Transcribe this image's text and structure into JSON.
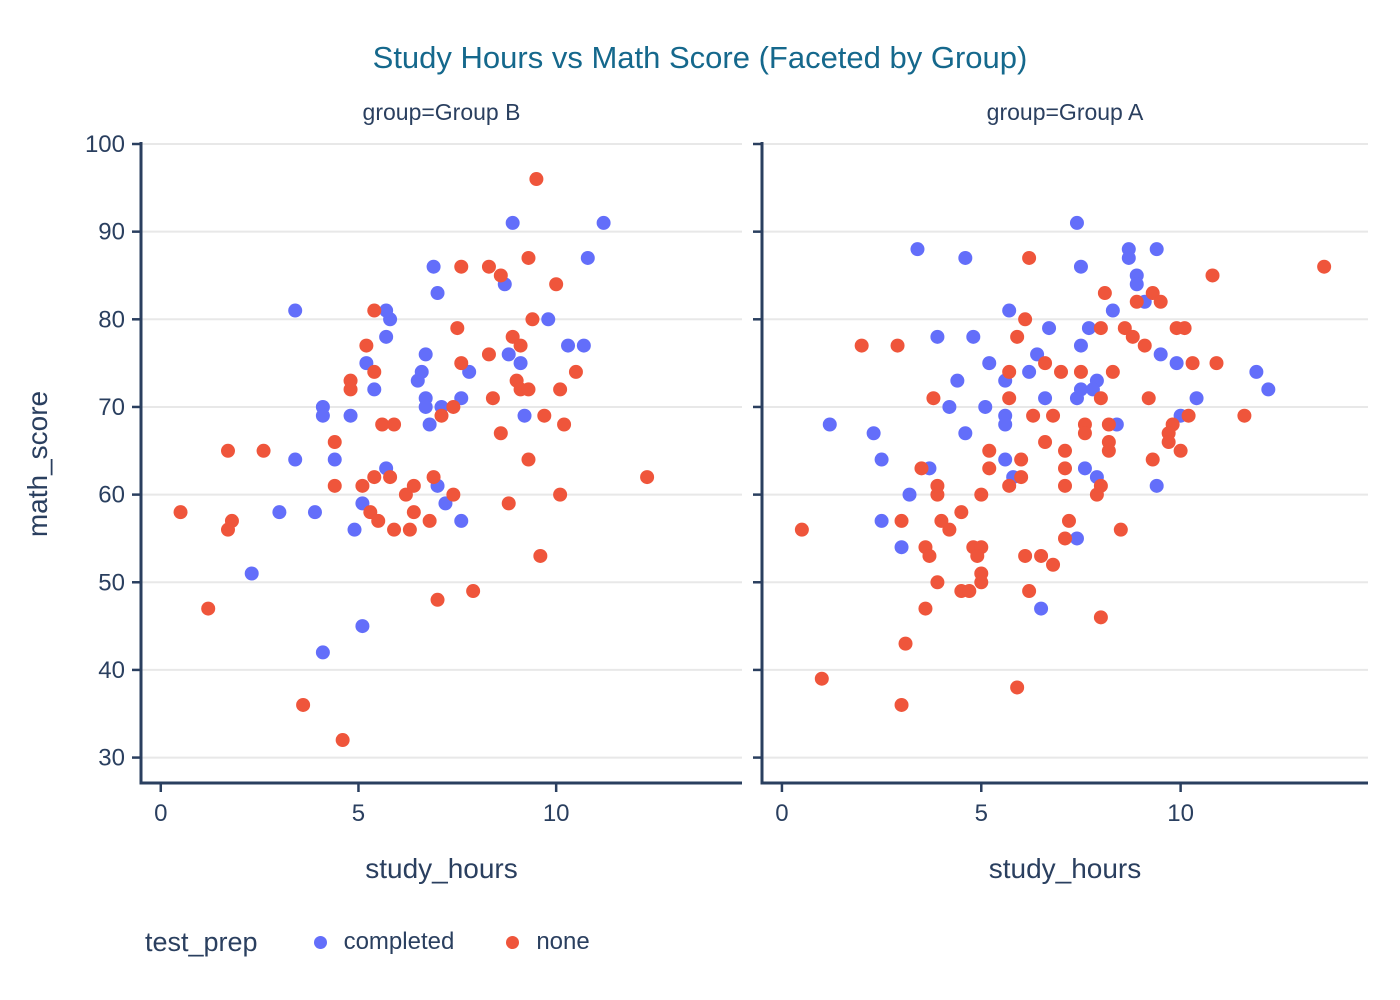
{
  "colors": {
    "title": "#15688C",
    "text": "#2A3F5F",
    "grid": "#E8E8E8",
    "axis": "#2A3F5F",
    "background": "#FFFFFF",
    "completed": "#636EFA",
    "none": "#EF553B"
  },
  "legend": {
    "title": "test_prep",
    "items": [
      {
        "label": "completed",
        "color_key": "completed"
      },
      {
        "label": "none",
        "color_key": "none"
      }
    ]
  },
  "chart_data": {
    "type": "scatter",
    "title": "Study Hours vs Math Score (Faceted by Group)",
    "xlabel": "study_hours",
    "ylabel": "math_score",
    "legend_title": "test_prep",
    "x_ticks": [
      0,
      5,
      10
    ],
    "y_ticks": [
      30,
      40,
      50,
      60,
      70,
      80,
      90,
      100
    ],
    "x_range": [
      -0.5,
      14.7
    ],
    "y_range": [
      27.1,
      100
    ],
    "grid": "horizontal-only",
    "legend_position": "bottom-left",
    "facets": [
      {
        "label": "group=Group B",
        "series": [
          {
            "name": "completed",
            "points": [
              [
                3.4,
                81
              ],
              [
                5.7,
                81
              ],
              [
                5.8,
                80
              ],
              [
                6.9,
                86
              ],
              [
                7.0,
                83
              ],
              [
                5.7,
                78
              ],
              [
                5.2,
                75
              ],
              [
                5.4,
                72
              ],
              [
                6.5,
                73
              ],
              [
                6.6,
                74
              ],
              [
                6.7,
                76
              ],
              [
                6.7,
                71
              ],
              [
                6.7,
                70
              ],
              [
                7.1,
                70
              ],
              [
                4.1,
                70
              ],
              [
                4.1,
                69
              ],
              [
                4.8,
                69
              ],
              [
                6.8,
                68
              ],
              [
                3.4,
                64
              ],
              [
                4.4,
                64
              ],
              [
                5.7,
                63
              ],
              [
                8.9,
                91
              ],
              [
                11.2,
                91
              ],
              [
                10.8,
                87
              ],
              [
                8.7,
                84
              ],
              [
                9.8,
                80
              ],
              [
                8.8,
                76
              ],
              [
                10.3,
                77
              ],
              [
                10.7,
                77
              ],
              [
                9.1,
                75
              ],
              [
                7.8,
                74
              ],
              [
                7.6,
                71
              ],
              [
                9.2,
                69
              ],
              [
                3.0,
                58
              ],
              [
                3.9,
                58
              ],
              [
                5.1,
                59
              ],
              [
                4.9,
                56
              ],
              [
                2.3,
                51
              ],
              [
                5.1,
                45
              ],
              [
                4.1,
                42
              ],
              [
                7.0,
                61
              ],
              [
                7.2,
                59
              ],
              [
                7.6,
                57
              ]
            ]
          },
          {
            "name": "none",
            "points": [
              [
                5.4,
                81
              ],
              [
                5.2,
                77
              ],
              [
                5.4,
                74
              ],
              [
                4.8,
                73
              ],
              [
                4.8,
                72
              ],
              [
                5.6,
                68
              ],
              [
                5.9,
                68
              ],
              [
                7.1,
                69
              ],
              [
                4.4,
                66
              ],
              [
                1.7,
                65
              ],
              [
                2.6,
                65
              ],
              [
                9.5,
                96
              ],
              [
                9.3,
                87
              ],
              [
                7.6,
                86
              ],
              [
                8.3,
                86
              ],
              [
                8.6,
                85
              ],
              [
                10.0,
                84
              ],
              [
                9.4,
                80
              ],
              [
                7.5,
                79
              ],
              [
                8.9,
                78
              ],
              [
                9.1,
                77
              ],
              [
                8.3,
                76
              ],
              [
                7.6,
                75
              ],
              [
                10.5,
                74
              ],
              [
                9.0,
                73
              ],
              [
                9.1,
                72
              ],
              [
                9.3,
                72
              ],
              [
                8.4,
                71
              ],
              [
                10.1,
                72
              ],
              [
                7.4,
                70
              ],
              [
                9.7,
                69
              ],
              [
                10.2,
                68
              ],
              [
                8.6,
                67
              ],
              [
                9.3,
                64
              ],
              [
                4.4,
                61
              ],
              [
                5.1,
                61
              ],
              [
                5.4,
                62
              ],
              [
                5.8,
                62
              ],
              [
                6.4,
                61
              ],
              [
                6.9,
                62
              ],
              [
                6.2,
                60
              ],
              [
                0.5,
                58
              ],
              [
                1.8,
                57
              ],
              [
                1.7,
                56
              ],
              [
                5.3,
                58
              ],
              [
                5.5,
                57
              ],
              [
                5.9,
                56
              ],
              [
                6.3,
                56
              ],
              [
                6.4,
                58
              ],
              [
                6.8,
                57
              ],
              [
                1.2,
                47
              ],
              [
                7.0,
                48
              ],
              [
                3.6,
                36
              ],
              [
                4.6,
                32
              ],
              [
                12.3,
                62
              ],
              [
                7.4,
                60
              ],
              [
                8.8,
                59
              ],
              [
                10.1,
                60
              ],
              [
                9.6,
                53
              ],
              [
                7.9,
                49
              ]
            ]
          }
        ]
      },
      {
        "label": "group=Group A",
        "series": [
          {
            "name": "completed",
            "points": [
              [
                3.4,
                88
              ],
              [
                4.6,
                87
              ],
              [
                5.7,
                81
              ],
              [
                6.7,
                79
              ],
              [
                3.9,
                78
              ],
              [
                4.8,
                78
              ],
              [
                5.2,
                75
              ],
              [
                6.4,
                76
              ],
              [
                5.6,
                73
              ],
              [
                6.2,
                74
              ],
              [
                4.4,
                73
              ],
              [
                4.2,
                70
              ],
              [
                5.1,
                70
              ],
              [
                6.6,
                71
              ],
              [
                5.6,
                69
              ],
              [
                5.6,
                68
              ],
              [
                1.2,
                68
              ],
              [
                2.3,
                67
              ],
              [
                4.6,
                67
              ],
              [
                2.5,
                64
              ],
              [
                5.6,
                64
              ],
              [
                7.4,
                91
              ],
              [
                7.5,
                86
              ],
              [
                8.7,
                88
              ],
              [
                8.7,
                87
              ],
              [
                9.4,
                88
              ],
              [
                8.9,
                85
              ],
              [
                8.9,
                84
              ],
              [
                9.1,
                82
              ],
              [
                8.3,
                81
              ],
              [
                7.7,
                79
              ],
              [
                7.5,
                77
              ],
              [
                9.5,
                76
              ],
              [
                9.9,
                75
              ],
              [
                11.9,
                74
              ],
              [
                12.2,
                72
              ],
              [
                7.9,
                73
              ],
              [
                7.5,
                72
              ],
              [
                7.8,
                72
              ],
              [
                7.4,
                71
              ],
              [
                10.4,
                71
              ],
              [
                10.0,
                69
              ],
              [
                8.4,
                68
              ],
              [
                3.7,
                63
              ],
              [
                5.8,
                62
              ],
              [
                3.2,
                60
              ],
              [
                2.5,
                57
              ],
              [
                3.0,
                54
              ],
              [
                6.5,
                47
              ],
              [
                7.4,
                55
              ],
              [
                7.6,
                63
              ],
              [
                7.9,
                62
              ],
              [
                9.4,
                61
              ]
            ]
          },
          {
            "name": "none",
            "points": [
              [
                6.2,
                87
              ],
              [
                6.1,
                80
              ],
              [
                2.0,
                77
              ],
              [
                2.9,
                77
              ],
              [
                5.9,
                78
              ],
              [
                6.6,
                75
              ],
              [
                5.7,
                74
              ],
              [
                7.0,
                74
              ],
              [
                3.8,
                71
              ],
              [
                5.7,
                71
              ],
              [
                6.3,
                69
              ],
              [
                6.8,
                69
              ],
              [
                6.6,
                66
              ],
              [
                5.2,
                65
              ],
              [
                3.5,
                63
              ],
              [
                5.2,
                63
              ],
              [
                6.0,
                64
              ],
              [
                10.8,
                85
              ],
              [
                13.6,
                86
              ],
              [
                8.1,
                83
              ],
              [
                9.3,
                83
              ],
              [
                8.9,
                82
              ],
              [
                9.5,
                82
              ],
              [
                8.0,
                79
              ],
              [
                8.6,
                79
              ],
              [
                8.8,
                78
              ],
              [
                9.9,
                79
              ],
              [
                10.1,
                79
              ],
              [
                9.1,
                77
              ],
              [
                10.3,
                75
              ],
              [
                10.9,
                75
              ],
              [
                7.5,
                74
              ],
              [
                8.3,
                74
              ],
              [
                8.0,
                71
              ],
              [
                9.2,
                71
              ],
              [
                10.2,
                69
              ],
              [
                11.6,
                69
              ],
              [
                7.6,
                68
              ],
              [
                7.6,
                67
              ],
              [
                8.2,
                68
              ],
              [
                9.8,
                68
              ],
              [
                9.7,
                67
              ],
              [
                9.7,
                66
              ],
              [
                8.2,
                66
              ],
              [
                8.2,
                65
              ],
              [
                10.0,
                65
              ],
              [
                9.3,
                64
              ],
              [
                6.0,
                62
              ],
              [
                5.7,
                61
              ],
              [
                3.9,
                61
              ],
              [
                3.9,
                60
              ],
              [
                5.0,
                60
              ],
              [
                4.5,
                58
              ],
              [
                3.0,
                57
              ],
              [
                4.0,
                57
              ],
              [
                4.2,
                56
              ],
              [
                0.5,
                56
              ],
              [
                3.6,
                54
              ],
              [
                3.7,
                53
              ],
              [
                4.8,
                54
              ],
              [
                5.0,
                54
              ],
              [
                4.9,
                53
              ],
              [
                6.1,
                53
              ],
              [
                6.5,
                53
              ],
              [
                6.8,
                52
              ],
              [
                5.0,
                51
              ],
              [
                5.0,
                50
              ],
              [
                3.9,
                50
              ],
              [
                4.5,
                49
              ],
              [
                4.7,
                49
              ],
              [
                6.2,
                49
              ],
              [
                3.6,
                47
              ],
              [
                3.1,
                43
              ],
              [
                1.0,
                39
              ],
              [
                5.9,
                38
              ],
              [
                3.0,
                36
              ],
              [
                7.1,
                63
              ],
              [
                7.1,
                61
              ],
              [
                8.0,
                61
              ],
              [
                7.9,
                60
              ],
              [
                7.2,
                57
              ],
              [
                7.1,
                55
              ],
              [
                8.5,
                56
              ],
              [
                8.0,
                46
              ],
              [
                7.1,
                65
              ]
            ]
          }
        ]
      }
    ]
  }
}
